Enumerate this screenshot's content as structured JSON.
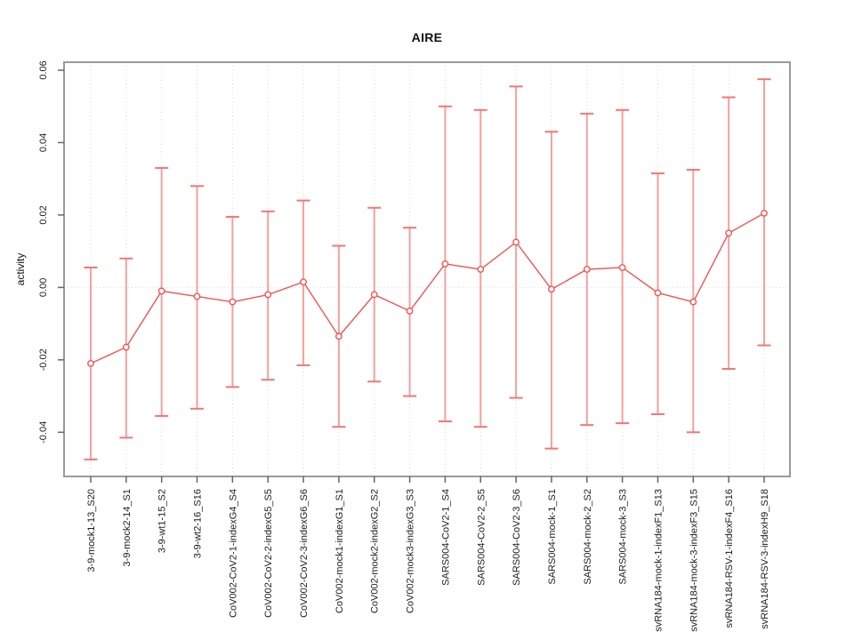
{
  "chart_data": {
    "type": "line",
    "error_bars": true,
    "title": "AIRE",
    "xlabel": "",
    "ylabel": "activity",
    "legend": "none",
    "grid": {
      "vertical": "dotted at each category",
      "horizontal": "dotted at 0"
    },
    "ylim": [
      -0.0522,
      0.0622
    ],
    "yticks": [
      -0.04,
      -0.02,
      0.0,
      0.02,
      0.04,
      0.06
    ],
    "categories": [
      "3-9-mock1-13_S20",
      "3-9-mock2-14_S1",
      "3-9-wt1-15_S2",
      "3-9-wt2-16_S16",
      "CoV002-CoV2-1-indexG4_S4",
      "CoV002-CoV2-2-indexG5_S5",
      "CoV002-CoV2-3-indexG6_S6",
      "CoV002-mock1-indexG1_S1",
      "CoV002-mock2-indexG2_S2",
      "CoV002-mock3-indexG3_S3",
      "SARS004-CoV2-1_S4",
      "SARS004-CoV2-2_S5",
      "SARS004-CoV2-3_S6",
      "SARS004-mock-1_S1",
      "SARS004-mock-2_S2",
      "SARS004-mock-3_S3",
      "svRNA184-mock-1-indexF1_S13",
      "svRNA184-mock-3-indexF3_S15",
      "svRNA184-RSV-1-indexF4_S16",
      "svRNA184-RSV-3-indexH9_S18"
    ],
    "series": [
      {
        "name": "activity",
        "values": [
          -0.021,
          -0.0165,
          -0.001,
          -0.0025,
          -0.004,
          -0.002,
          0.0015,
          -0.0135,
          -0.002,
          -0.0065,
          0.0065,
          0.005,
          0.0125,
          -0.0005,
          0.005,
          0.0055,
          -0.0015,
          -0.004,
          0.015,
          0.0205
        ],
        "upper": [
          0.0055,
          0.008,
          0.033,
          0.028,
          0.0195,
          0.021,
          0.024,
          0.0115,
          0.022,
          0.0165,
          0.05,
          0.049,
          0.0555,
          0.043,
          0.048,
          0.049,
          0.0315,
          0.0325,
          0.0525,
          0.0575
        ],
        "lower": [
          -0.0475,
          -0.0415,
          -0.0355,
          -0.0335,
          -0.0275,
          -0.0255,
          -0.0215,
          -0.0385,
          -0.026,
          -0.03,
          -0.037,
          -0.0385,
          -0.0305,
          -0.0445,
          -0.038,
          -0.0375,
          -0.035,
          -0.04,
          -0.0225,
          -0.016
        ]
      }
    ],
    "colors": {
      "line": "#ef5555",
      "point_fill": "#ffffff",
      "error_bar": "#f5a0a0",
      "error_cap": "#f27676",
      "grid": "#dcdcdc",
      "box": "#8f8f8f",
      "tick": "#666666",
      "text": "#111111"
    }
  }
}
